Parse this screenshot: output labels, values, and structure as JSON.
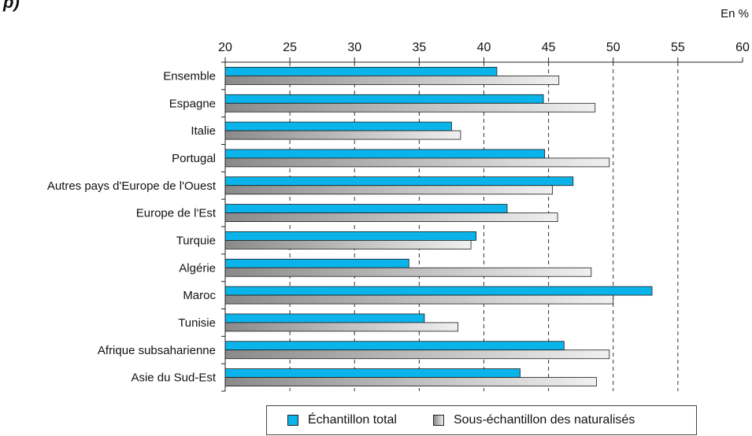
{
  "unit_label": "En %",
  "cut_mark": "p)",
  "colors": {
    "total": "#0ab4ea",
    "naturalises_dark": "#8a8a8a",
    "naturalises_light": "#ececec"
  },
  "chart_data": {
    "type": "bar",
    "orientation": "horizontal",
    "categories": [
      "Ensemble",
      "Espagne",
      "Italie",
      "Portugal",
      "Autres pays d'Europe de l'Ouest",
      "Europe de l'Est",
      "Turquie",
      "Algérie",
      "Maroc",
      "Tunisie",
      "Afrique subsaharienne",
      "Asie du Sud-Est"
    ],
    "series": [
      {
        "name": "Échantillon total",
        "values": [
          41.0,
          44.6,
          37.5,
          44.7,
          46.9,
          41.8,
          39.4,
          34.2,
          53.0,
          35.4,
          46.2,
          42.8
        ]
      },
      {
        "name": "Sous-échantillon des naturalisés",
        "values": [
          45.8,
          48.6,
          38.2,
          49.7,
          45.3,
          45.7,
          39.0,
          48.3,
          50.0,
          38.0,
          49.7,
          48.7
        ]
      }
    ],
    "xlim": [
      20,
      60
    ],
    "x_ticks": [
      20,
      25,
      30,
      35,
      40,
      45,
      50,
      55,
      60
    ],
    "x_tick_labels": [
      "20",
      "25",
      "30",
      "35",
      "40",
      "45",
      "50",
      "55",
      "60"
    ],
    "grid": "vertical dashed",
    "axis_position": "top",
    "legend_position": "bottom"
  }
}
